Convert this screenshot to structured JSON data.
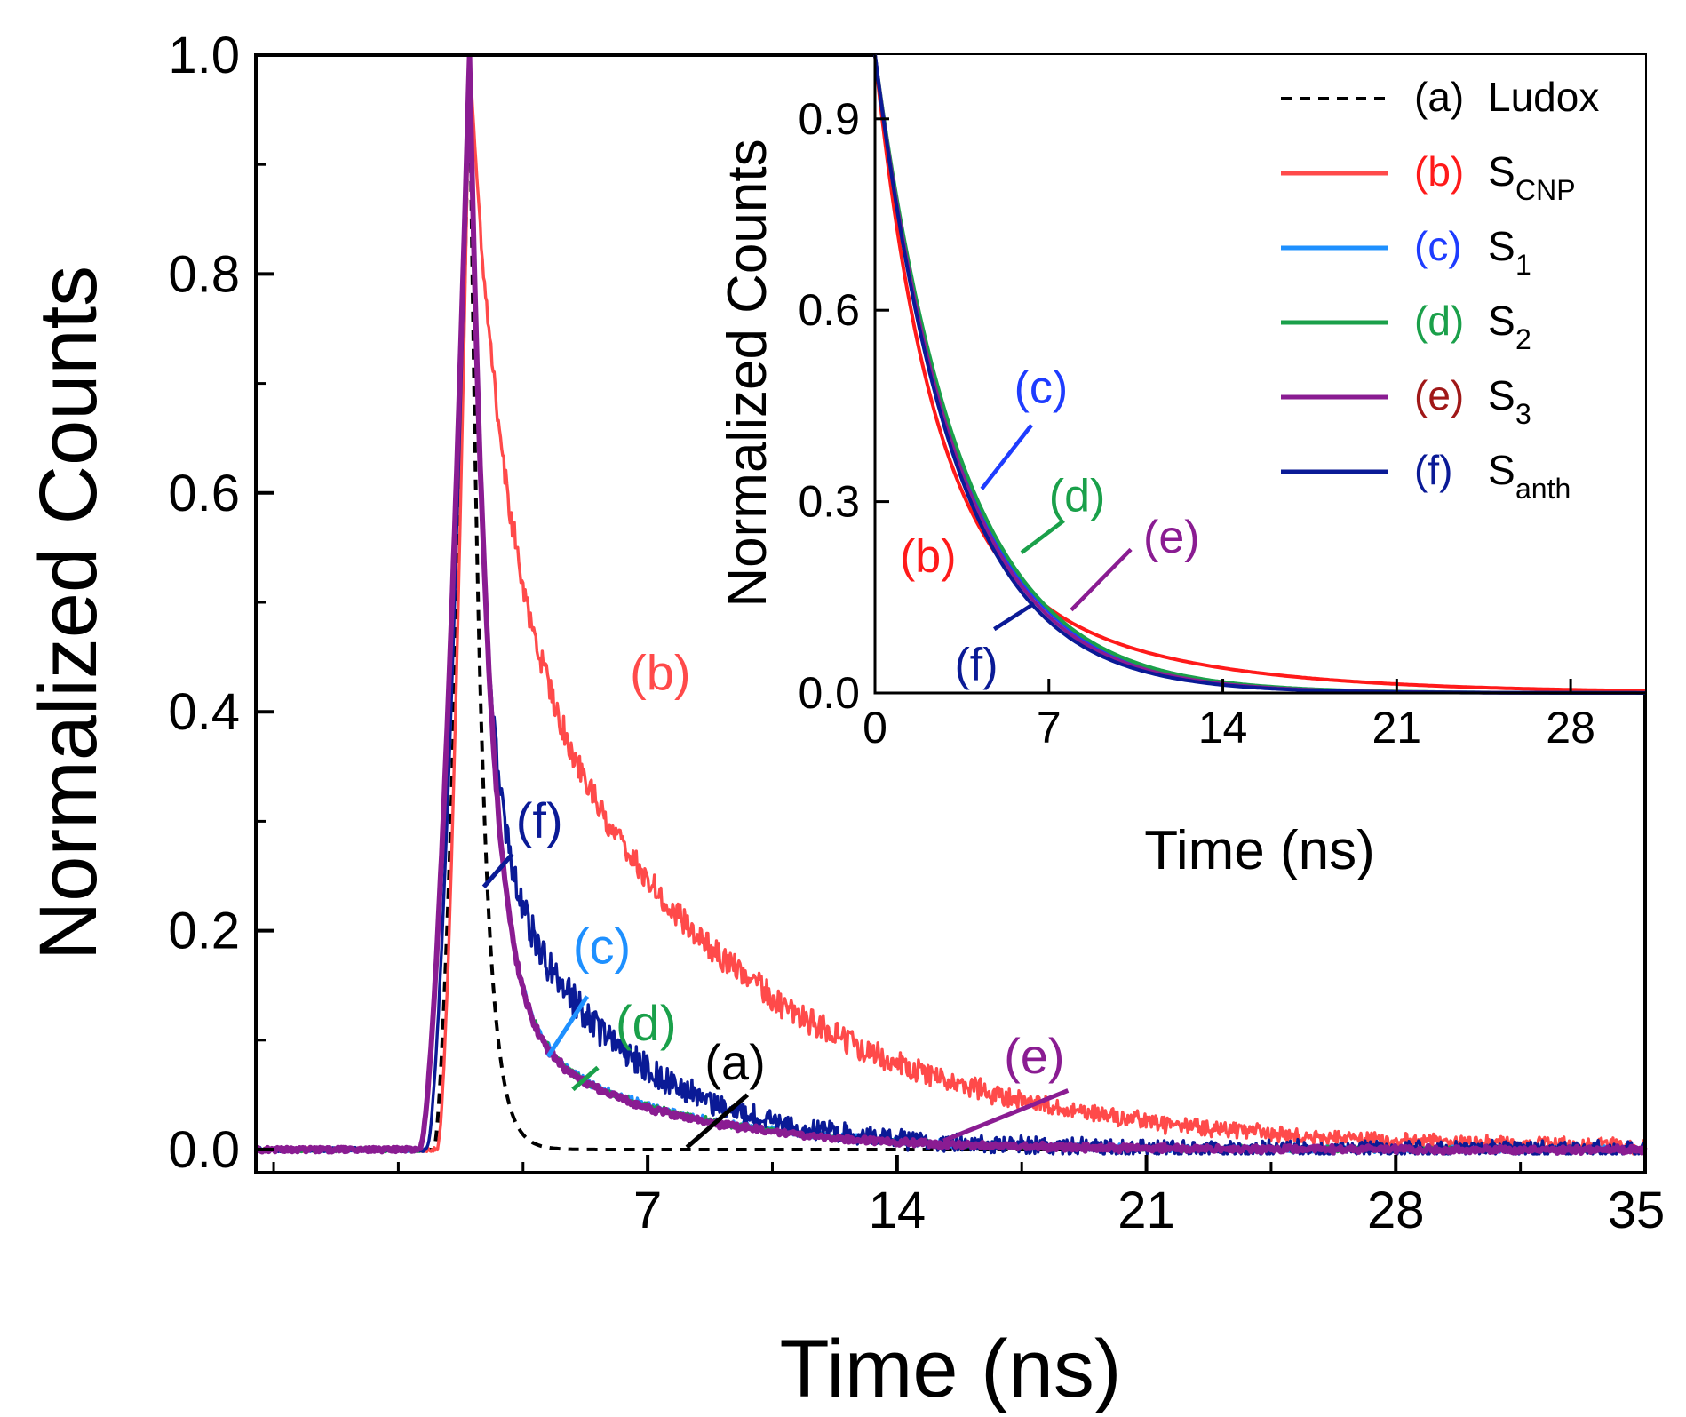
{
  "chart_data": [
    {
      "type": "line",
      "name": "main",
      "title": "",
      "xlabel": "Time (ns)",
      "ylabel": "Normalized Counts",
      "xlim": [
        -4,
        35
      ],
      "ylim": [
        0,
        1.0
      ],
      "x_ticks": [
        7,
        14,
        21,
        28,
        35
      ],
      "y_ticks": [
        0.0,
        0.2,
        0.4,
        0.6,
        0.8,
        1.0
      ],
      "x_tick_labels": [
        "7",
        "14",
        "21",
        "28",
        "35"
      ],
      "y_tick_labels": [
        "0.0",
        "0.2",
        "0.4",
        "0.6",
        "0.8",
        "1.0"
      ],
      "grid": false,
      "peak_time": 2.0,
      "series": [
        {
          "id": "a",
          "name": "(a) Ludox",
          "color": "#000000",
          "dash": true,
          "rise_start": 1.0,
          "fast_amp": 1.0,
          "fast_tau": 0.35,
          "slow_amp": 0.0,
          "slow_tau": 1.0,
          "noise": 0.0
        },
        {
          "id": "b",
          "name": "(b) S_CNP",
          "color": "#ff4a4a",
          "dash": false,
          "rise_start": 1.1,
          "fast_amp": 0.45,
          "fast_tau": 0.9,
          "slow_amp": 0.55,
          "slow_tau": 6.2,
          "noise": 0.012
        },
        {
          "id": "c",
          "name": "(c) S_1",
          "color": "#1e90ff",
          "dash": false,
          "rise_start": 0.6,
          "fast_amp": 0.87,
          "fast_tau": 0.55,
          "slow_amp": 0.13,
          "slow_tau": 4.3,
          "noise": 0.003
        },
        {
          "id": "d",
          "name": "(d) S_2",
          "color": "#1aa04a",
          "dash": false,
          "rise_start": 0.6,
          "fast_amp": 0.87,
          "fast_tau": 0.55,
          "slow_amp": 0.13,
          "slow_tau": 4.2,
          "noise": 0.003
        },
        {
          "id": "e",
          "name": "(e) S_3",
          "color": "#8a1c92",
          "dash": false,
          "rise_start": 0.6,
          "fast_amp": 0.87,
          "fast_tau": 0.55,
          "slow_amp": 0.13,
          "slow_tau": 4.1,
          "noise": 0.003
        },
        {
          "id": "f",
          "name": "(f) S_anth",
          "color": "#0a1a96",
          "dash": false,
          "rise_start": 0.8,
          "fast_amp": 0.68,
          "fast_tau": 0.4,
          "slow_amp": 0.32,
          "slow_tau": 3.4,
          "noise": 0.015
        }
      ],
      "annotations": [
        {
          "text": "(a)",
          "color": "#000000",
          "at_x": 8.0,
          "at_y": 0.0
        },
        {
          "text": "(b)",
          "color": "#ff4a4a",
          "at_x": 6.5,
          "at_y": 0.42
        },
        {
          "text": "(c)",
          "color": "#1e90ff",
          "at_x": 4.9,
          "at_y": 0.09
        },
        {
          "text": "(d)",
          "color": "#1aa04a",
          "at_x": 5.9,
          "at_y": 0.06
        },
        {
          "text": "(e)",
          "color": "#8a1c92",
          "at_x": 14.5,
          "at_y": 0.01
        },
        {
          "text": "(f)",
          "color": "#0a1a96",
          "at_x": 3.5,
          "at_y": 0.24
        }
      ]
    },
    {
      "type": "line",
      "name": "inset",
      "title": "",
      "xlabel": "Time (ns)",
      "ylabel": "Normalized Counts",
      "xlim": [
        0,
        31
      ],
      "ylim": [
        0,
        1.0
      ],
      "x_ticks": [
        0,
        7,
        14,
        21,
        28
      ],
      "y_ticks": [
        0.0,
        0.3,
        0.6,
        0.9
      ],
      "x_tick_labels": [
        "0",
        "7",
        "14",
        "21",
        "28"
      ],
      "y_tick_labels": [
        "0.0",
        "0.3",
        "0.6",
        "0.9"
      ],
      "grid": false,
      "series": [
        {
          "id": "b",
          "name": "(b) S_CNP",
          "color": "#ff1a1a",
          "amp1": 0.72,
          "tau1": 2.2,
          "amp2": 0.28,
          "tau2": 7.0
        },
        {
          "id": "c",
          "name": "(c) S_1",
          "color": "#1e3cff",
          "amp1": 1.0,
          "tau1": 3.4,
          "amp2": 0.0,
          "tau2": 1.0
        },
        {
          "id": "d",
          "name": "(d) S_2",
          "color": "#1aa04a",
          "amp1": 1.0,
          "tau1": 3.45,
          "amp2": 0.0,
          "tau2": 1.0
        },
        {
          "id": "e",
          "name": "(e) S_3",
          "color": "#8a1c92",
          "amp1": 1.0,
          "tau1": 3.3,
          "amp2": 0.0,
          "tau2": 1.0
        },
        {
          "id": "f",
          "name": "(f) S_anth",
          "color": "#0a1a96",
          "amp1": 1.0,
          "tau1": 3.2,
          "amp2": 0.0,
          "tau2": 1.0
        }
      ],
      "annotations": [
        {
          "text": "(b)",
          "color": "#ff1a1a"
        },
        {
          "text": "(c)",
          "color": "#1e3cff"
        },
        {
          "text": "(d)",
          "color": "#1aa04a"
        },
        {
          "text": "(e)",
          "color": "#8a1c92"
        },
        {
          "text": "(f)",
          "color": "#0a1a96"
        }
      ]
    }
  ],
  "legend": {
    "placement": "top-right",
    "items": [
      {
        "label": "(a)",
        "name": "Ludox",
        "sub": "",
        "color": "#000000",
        "text_color": "#000000",
        "dash": true
      },
      {
        "label": "(b)",
        "name": "S",
        "sub": "CNP",
        "color": "#ff4a4a",
        "text_color": "#ff1a1a",
        "dash": false
      },
      {
        "label": "(c)",
        "name": "S",
        "sub": "1",
        "color": "#1e90ff",
        "text_color": "#1e3cff",
        "dash": false
      },
      {
        "label": "(d)",
        "name": "S",
        "sub": "2",
        "color": "#1aa04a",
        "text_color": "#1aa04a",
        "dash": false
      },
      {
        "label": "(e)",
        "name": "S",
        "sub": "3",
        "color": "#8a1c92",
        "text_color": "#a01818",
        "dash": false
      },
      {
        "label": "(f)",
        "name": "S",
        "sub": "anth",
        "color": "#0a1a96",
        "text_color": "#0a1a96",
        "dash": false
      }
    ]
  }
}
